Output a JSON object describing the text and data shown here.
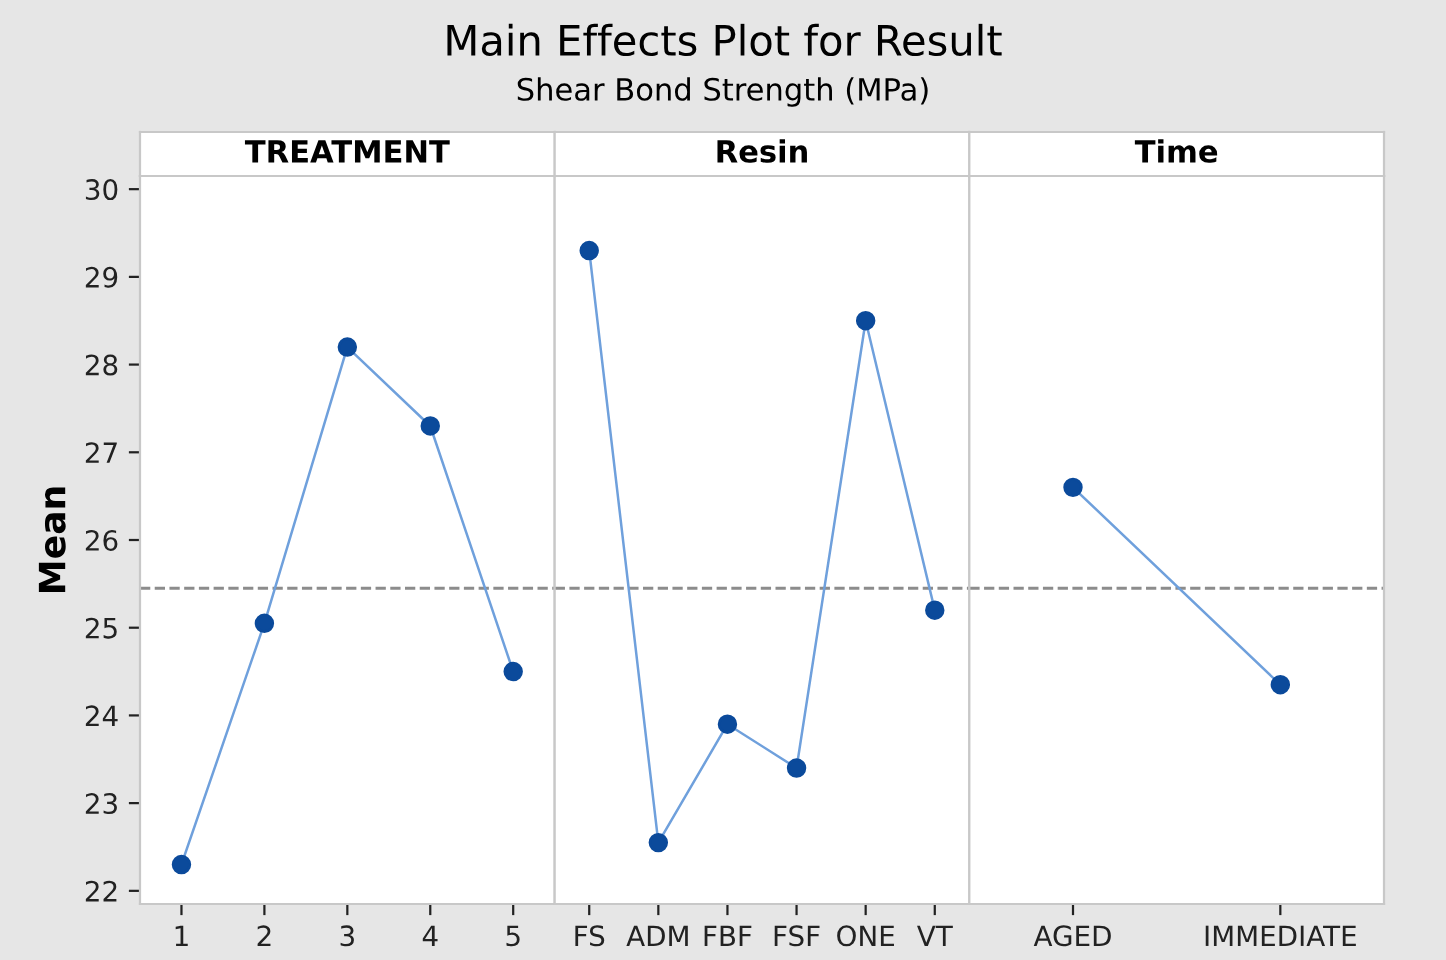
{
  "chart_data": [
    {
      "type": "line",
      "title": "TREATMENT",
      "ylabel": "Mean",
      "annotations": [
        "Main Effects Plot for Result",
        "Shear Bond Strength (MPa)"
      ],
      "categories": [
        "1",
        "2",
        "3",
        "4",
        "5"
      ],
      "series": [
        {
          "color": "#0b4a9b",
          "values": [
            22.3,
            25.05,
            28.2,
            27.3,
            24.5
          ]
        }
      ],
      "ylim": [
        21.85,
        30.15
      ],
      "yticks": [
        22,
        23,
        24,
        25,
        26,
        27,
        28,
        29,
        30
      ],
      "marker": "circle",
      "line_style": "solid",
      "grid": false,
      "legend": false,
      "ref_lines": [
        {
          "axis": "y",
          "value": 25.45,
          "color": "#8c8c8c",
          "line_style": "dashed"
        }
      ]
    },
    {
      "type": "line",
      "title": "Resin",
      "categories": [
        "FS",
        "ADM",
        "FBF",
        "FSF",
        "ONE",
        "VT"
      ],
      "series": [
        {
          "color": "#0b4a9b",
          "values": [
            29.3,
            22.55,
            23.9,
            23.4,
            28.5,
            25.2
          ]
        }
      ],
      "ylim": [
        21.85,
        30.15
      ],
      "tick_labels": "x",
      "marker": "circle",
      "line_style": "solid",
      "grid": false,
      "legend": false,
      "ref_lines": [
        {
          "axis": "y",
          "value": 25.45,
          "color": "#8c8c8c",
          "line_style": "dashed"
        }
      ]
    },
    {
      "type": "line",
      "title": "Time",
      "categories": [
        "AGED",
        "IMMEDIATE"
      ],
      "series": [
        {
          "color": "#0b4a9b",
          "values": [
            26.6,
            24.35
          ]
        }
      ],
      "ylim": [
        21.85,
        30.15
      ],
      "tick_labels": "x",
      "marker": "circle",
      "line_style": "solid",
      "grid": false,
      "legend": false,
      "ref_lines": [
        {
          "axis": "y",
          "value": 25.45,
          "color": "#8c8c8c",
          "line_style": "dashed"
        }
      ]
    }
  ]
}
